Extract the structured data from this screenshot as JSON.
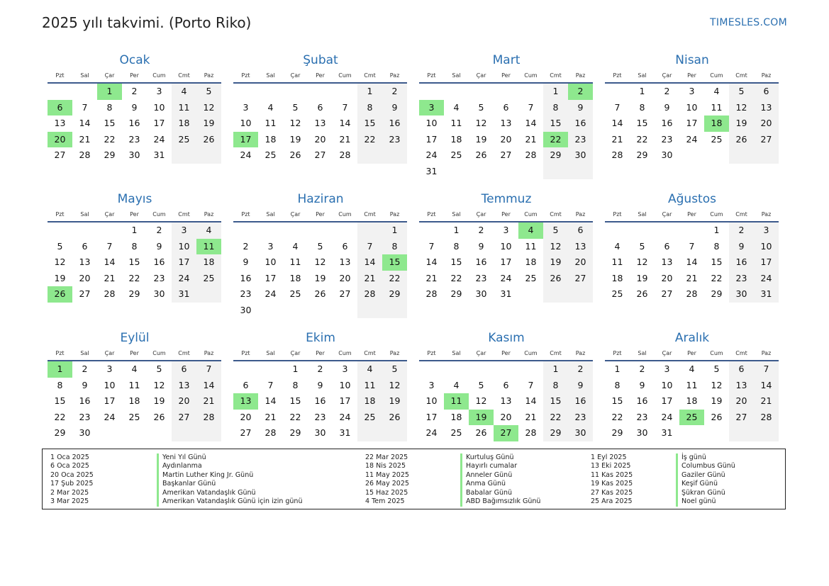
{
  "page": {
    "title": "2025 yılı takvimi. (Porto Riko)",
    "brand": "TIMESLES.COM"
  },
  "colors": {
    "accent": "#2a6fb0",
    "holiday": "#8ee88e",
    "weekend": "#f2f2f2"
  },
  "dows": [
    "Pzt",
    "Sal",
    "Çar",
    "Per",
    "Cum",
    "Cmt",
    "Paz"
  ],
  "months": [
    {
      "name": "Ocak",
      "offset": 2,
      "days": 31,
      "holidays": [
        1,
        6,
        20
      ]
    },
    {
      "name": "Şubat",
      "offset": 5,
      "days": 28,
      "holidays": [
        17
      ]
    },
    {
      "name": "Mart",
      "offset": 5,
      "days": 31,
      "holidays": [
        2,
        3,
        22
      ]
    },
    {
      "name": "Nisan",
      "offset": 1,
      "days": 30,
      "holidays": [
        18
      ]
    },
    {
      "name": "Mayıs",
      "offset": 3,
      "days": 31,
      "holidays": [
        11,
        26
      ]
    },
    {
      "name": "Haziran",
      "offset": 6,
      "days": 30,
      "holidays": [
        15
      ]
    },
    {
      "name": "Temmuz",
      "offset": 1,
      "days": 31,
      "holidays": [
        4
      ]
    },
    {
      "name": "Ağustos",
      "offset": 4,
      "days": 31,
      "holidays": []
    },
    {
      "name": "Eylül",
      "offset": 0,
      "days": 30,
      "holidays": [
        1
      ]
    },
    {
      "name": "Ekim",
      "offset": 2,
      "days": 31,
      "holidays": [
        13
      ]
    },
    {
      "name": "Kasım",
      "offset": 5,
      "days": 30,
      "holidays": [
        11,
        19,
        27
      ]
    },
    {
      "name": "Aralık",
      "offset": 0,
      "days": 31,
      "holidays": [
        25
      ]
    }
  ],
  "legend": {
    "col1_dates": [
      "1 Oca 2025",
      "6 Oca 2025",
      "20 Oca 2025",
      "17 Şub 2025",
      "2 Mar 2025",
      "3 Mar 2025"
    ],
    "col1_names": [
      "Yeni Yıl Günü",
      "Aydınlanma",
      "Martin Luther King Jr. Günü",
      "Başkanlar Günü",
      "Amerikan Vatandaşlık Günü",
      "Amerikan Vatandaşlık Günü için izin günü"
    ],
    "col2_dates": [
      "22 Mar 2025",
      "18 Nis 2025",
      "11 May 2025",
      "26 May 2025",
      "15 Haz 2025",
      "4 Tem 2025"
    ],
    "col2_names": [
      "Kurtuluş Günü",
      "Hayırlı cumalar",
      "Anneler Günü",
      "Anma Günü",
      "Babalar Günü",
      "ABD Bağımsızlık Günü"
    ],
    "col3_dates": [
      "1 Eyl 2025",
      "13 Eki 2025",
      "11 Kas 2025",
      "19 Kas 2025",
      "27 Kas 2025",
      "25 Ara 2025"
    ],
    "col3_names": [
      "İş günü",
      "Columbus Günü",
      "Gaziler Günü",
      "Keşif Günü",
      "Şükran Günü",
      "Noel günü"
    ]
  }
}
